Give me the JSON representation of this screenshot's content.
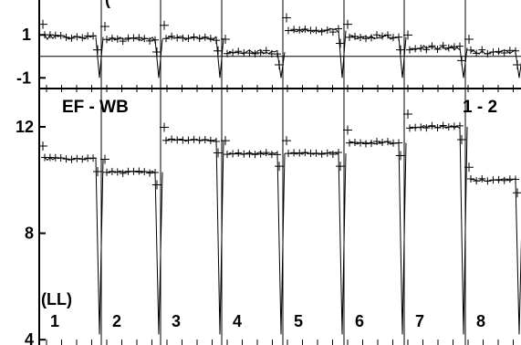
{
  "chart_data": [
    {
      "type": "line",
      "title": "",
      "title_fragment": "(",
      "ylim": [
        -1.2,
        2.2
      ],
      "yticks": [
        -1,
        1
      ],
      "yticklabels": [
        "-1",
        "1"
      ],
      "xlim": [
        0,
        8
      ],
      "grid": false,
      "reference_line": 0,
      "series": [
        {
          "values": [
            0.9,
            0.8,
            0.85,
            0.2,
            1.2,
            0.9,
            0.4,
            0.2
          ]
        }
      ]
    },
    {
      "type": "line",
      "title": "",
      "ylim": [
        3.8,
        13.2
      ],
      "yticks": [
        4,
        8,
        12
      ],
      "yticklabels": [
        "4",
        "8",
        "12"
      ],
      "xlim": [
        0,
        8
      ],
      "grid": false,
      "series": [
        {
          "values": [
            10.8,
            10.3,
            11.5,
            11.0,
            11.0,
            11.4,
            12.0,
            10.0
          ]
        }
      ],
      "annotations": {
        "ef_wb": "EF - WB",
        "pair": "1 - 2",
        "ll": "(LL)"
      },
      "segment_labels": [
        "1",
        "2",
        "3",
        "4",
        "5",
        "6",
        "7",
        "8"
      ]
    }
  ]
}
